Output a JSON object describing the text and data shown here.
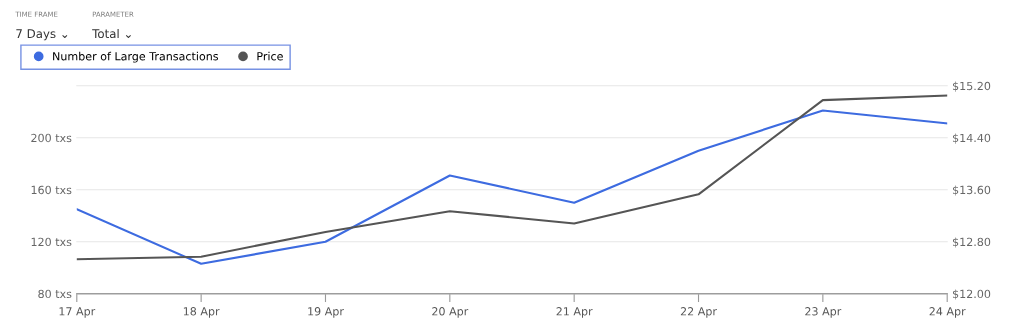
{
  "chart_data": {
    "type": "line",
    "categories": [
      "17 Apr",
      "18 Apr",
      "19 Apr",
      "20 Apr",
      "21 Apr",
      "22 Apr",
      "23 Apr",
      "24 Apr"
    ],
    "series": [
      {
        "name": "Number of Large Transactions",
        "color": "#3d6be0",
        "values": [
          145,
          103,
          120,
          171,
          150,
          190,
          221,
          211
        ]
      },
      {
        "name": "Price",
        "color": "#555555",
        "axis": "y2",
        "values": [
          12.53,
          12.57,
          12.95,
          13.27,
          13.08,
          13.53,
          14.98,
          15.05
        ]
      }
    ],
    "ylim": [
      80,
      240
    ],
    "yticks": [
      {
        "value": 80,
        "label": "80 txs"
      },
      {
        "value": 120,
        "label": "120 txs"
      },
      {
        "value": 160,
        "label": "160 txs"
      },
      {
        "value": 200,
        "label": "200 txs"
      },
      {
        "value": 240,
        "label": null
      }
    ],
    "y2lim": [
      12.0,
      15.2
    ],
    "y2ticks": [
      {
        "value": 12.0,
        "label": "$12.00"
      },
      {
        "value": 12.8,
        "label": "$12.80"
      },
      {
        "value": 13.6,
        "label": "$13.60"
      },
      {
        "value": 14.4,
        "label": "$14.40"
      },
      {
        "value": 15.2,
        "label": "$15.20"
      }
    ],
    "grid": "y",
    "legend": "top left",
    "marker": "none",
    "line_style": "solid",
    "annotations": [
      "TIME FRAME",
      "7 Days ⌄",
      "PARAMETER",
      "Total ⌄"
    ]
  }
}
